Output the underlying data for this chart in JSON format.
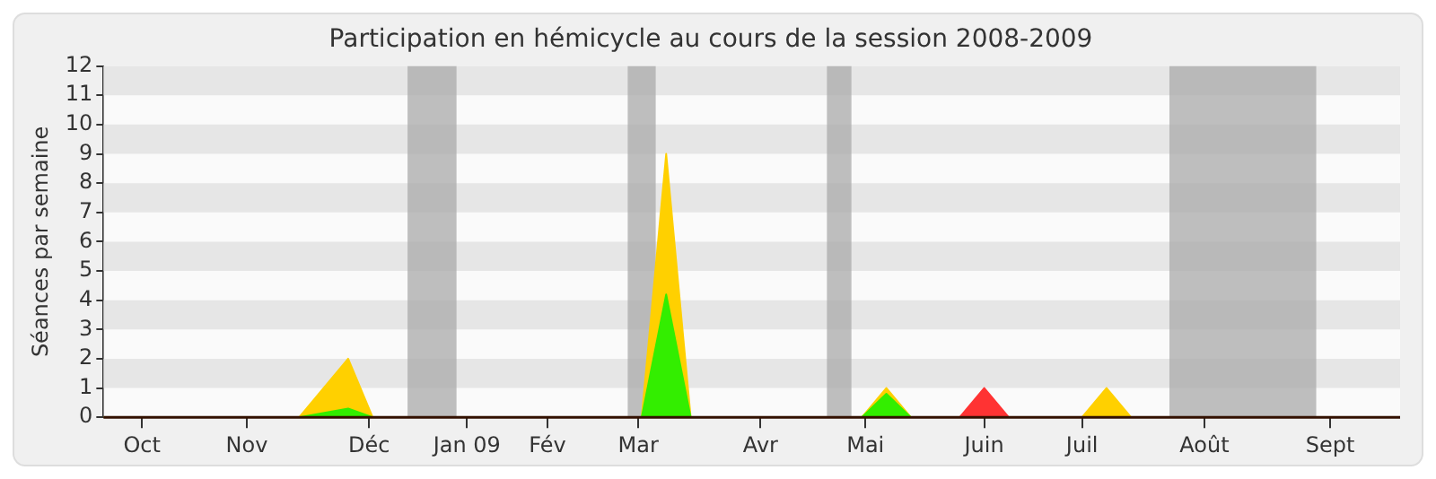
{
  "chart_data": {
    "type": "area",
    "title": "Participation en hémicycle au cours de la session 2008-2009",
    "ylabel": "Séances par semaine",
    "xlim": [
      "2008-09-29",
      "2009-10-05"
    ],
    "xticks": [
      {
        "value": "2008-10-10",
        "label": "Oct"
      },
      {
        "value": "2008-11-09",
        "label": "Nov"
      },
      {
        "value": "2008-12-14",
        "label": "Déc"
      },
      {
        "value": "2009-01-11",
        "label": "Jan 09"
      },
      {
        "value": "2009-02-03",
        "label": "Fév"
      },
      {
        "value": "2009-03-01",
        "label": "Mar"
      },
      {
        "value": "2009-04-05",
        "label": "Avr"
      },
      {
        "value": "2009-05-05",
        "label": "Mai"
      },
      {
        "value": "2009-06-08",
        "label": "Juin"
      },
      {
        "value": "2009-07-06",
        "label": "Juil"
      },
      {
        "value": "2009-08-10",
        "label": "Août"
      },
      {
        "value": "2009-09-15",
        "label": "Sept"
      }
    ],
    "ylim": [
      0,
      12
    ],
    "yticks": [
      0,
      1,
      2,
      3,
      4,
      5,
      6,
      7,
      8,
      9,
      10,
      11,
      12
    ],
    "series": [
      {
        "color": "#33ee00",
        "x": [
          "2008-09-29",
          "2008-11-24",
          "2008-12-08",
          "2008-12-15",
          "2009-03-02",
          "2009-03-09",
          "2009-03-16",
          "2009-05-04",
          "2009-05-11",
          "2009-05-18",
          "2009-10-05"
        ],
        "values": [
          0,
          0,
          0.3,
          0,
          0,
          4.2,
          0,
          0,
          0.8,
          0,
          0
        ]
      },
      {
        "color": "#ff3333",
        "x": [
          "2008-09-29",
          "2009-06-01",
          "2009-06-08",
          "2009-06-15",
          "2009-10-05"
        ],
        "values": [
          0,
          0,
          1,
          0,
          0
        ]
      },
      {
        "color": "#ffd000",
        "x": [
          "2008-09-29",
          "2008-11-24",
          "2008-12-08",
          "2008-12-15",
          "2009-03-02",
          "2009-03-09",
          "2009-03-16",
          "2009-05-04",
          "2009-05-11",
          "2009-05-18",
          "2009-07-06",
          "2009-07-13",
          "2009-07-20",
          "2009-10-05"
        ],
        "values": [
          0,
          0,
          2,
          0,
          0,
          9,
          0,
          0,
          1,
          0,
          0,
          1,
          0,
          0
        ]
      }
    ],
    "bands": [
      {
        "axis": "y",
        "from": 1,
        "to": 2,
        "color": "#e6e6e6"
      },
      {
        "axis": "y",
        "from": 3,
        "to": 4,
        "color": "#e6e6e6"
      },
      {
        "axis": "y",
        "from": 5,
        "to": 6,
        "color": "#e6e6e6"
      },
      {
        "axis": "y",
        "from": 7,
        "to": 8,
        "color": "#e6e6e6"
      },
      {
        "axis": "y",
        "from": 9,
        "to": 10,
        "color": "#e6e6e6"
      },
      {
        "axis": "y",
        "from": 11,
        "to": 12,
        "color": "#e6e6e6"
      },
      {
        "axis": "x",
        "from": "2008-12-25",
        "to": "2009-01-08",
        "color": "#aaaaaa"
      },
      {
        "axis": "x",
        "from": "2009-02-26",
        "to": "2009-03-06",
        "color": "#aaaaaa"
      },
      {
        "axis": "x",
        "from": "2009-04-24",
        "to": "2009-05-01",
        "color": "#aaaaaa"
      },
      {
        "axis": "x",
        "from": "2009-07-31",
        "to": "2009-09-11",
        "color": "#aaaaaa"
      }
    ]
  }
}
